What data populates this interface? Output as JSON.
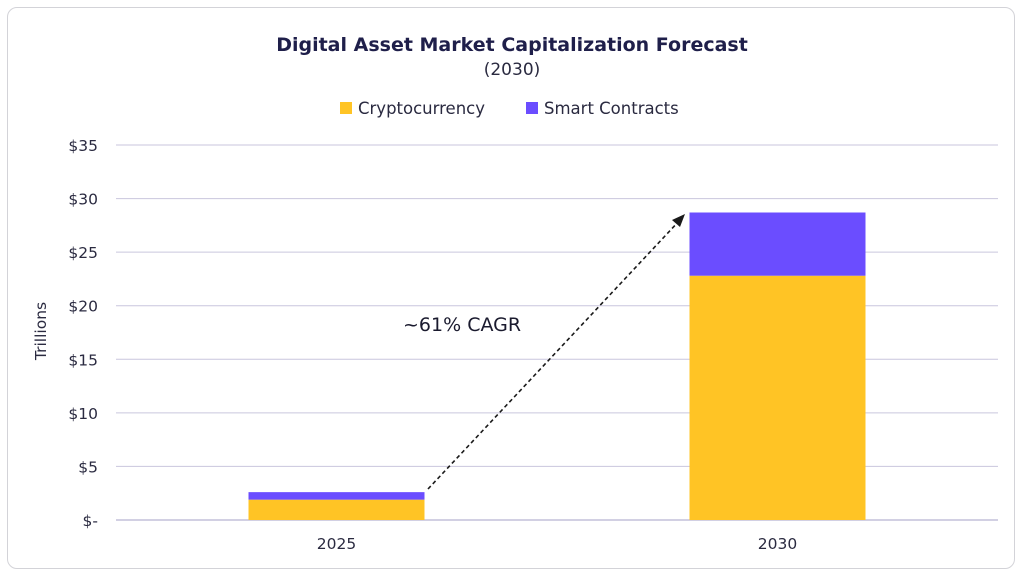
{
  "chart_data": {
    "type": "bar",
    "stacked": true,
    "title": "Digital Asset Market Capitalization Forecast",
    "subtitle": "(2030)",
    "categories": [
      "2025",
      "2030"
    ],
    "series": [
      {
        "name": "Cryptocurrency",
        "values": [
          1.9,
          22.8
        ],
        "color": "#ffc425"
      },
      {
        "name": "Smart Contracts",
        "values": [
          0.7,
          5.9
        ],
        "color": "#6b4dff"
      }
    ],
    "ylabel": "Trillions",
    "xlabel": "",
    "ylim": [
      0,
      35
    ],
    "yticks": [
      {
        "value": 0,
        "label": "$-"
      },
      {
        "value": 5,
        "label": "$5"
      },
      {
        "value": 10,
        "label": "$10"
      },
      {
        "value": 15,
        "label": "$15"
      },
      {
        "value": 20,
        "label": "$20"
      },
      {
        "value": 25,
        "label": "$25"
      },
      {
        "value": 30,
        "label": "$30"
      },
      {
        "value": 35,
        "label": "$35"
      }
    ],
    "grid": true,
    "legend_position": "top-center",
    "annotation": {
      "text": "~61% CAGR",
      "style": "dashed arrow from 2025 to 2030"
    }
  }
}
